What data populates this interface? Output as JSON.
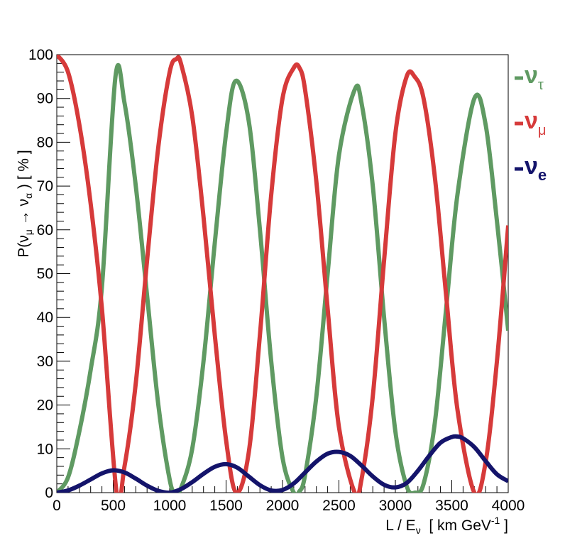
{
  "chart_data": {
    "type": "line",
    "xlabel": {
      "main": "L / E",
      "sub": "ν",
      "unit_pre": "  [ km GeV",
      "unit_sup": "-1",
      "unit_post": " ]"
    },
    "ylabel": {
      "pre": "P(",
      "nu1": "ν",
      "sub1": "μ",
      "arrow": " → ",
      "nu2": "ν",
      "sub2": "α",
      "post": " )  [ % ]"
    },
    "xlim": [
      0,
      4000
    ],
    "ylim": [
      0,
      100
    ],
    "x_ticks": [
      0,
      500,
      1000,
      1500,
      2000,
      2500,
      3000,
      3500,
      4000
    ],
    "y_ticks": [
      0,
      10,
      20,
      30,
      40,
      50,
      60,
      70,
      80,
      90,
      100
    ],
    "x_tick_labels": [
      "0",
      "500",
      "1000",
      "1500",
      "2000",
      "2500",
      "3000",
      "3500",
      "4000"
    ],
    "y_tick_labels": [
      "0",
      "10",
      "20",
      "30",
      "40",
      "50",
      "60",
      "70",
      "80",
      "90",
      "100"
    ],
    "grid": false,
    "legend_position": "right",
    "series": [
      {
        "name": "ν_τ",
        "symbol": "ν",
        "subscript": "τ",
        "color": "#5f9a62",
        "x": [
          0,
          100,
          200,
          300,
          400,
          520,
          600,
          700,
          800,
          900,
          1000,
          1050,
          1100,
          1200,
          1300,
          1400,
          1500,
          1585,
          1700,
          1800,
          1900,
          2000,
          2100,
          2150,
          2200,
          2300,
          2400,
          2500,
          2640,
          2700,
          2800,
          2900,
          3000,
          3100,
          3175,
          3250,
          3350,
          3450,
          3550,
          3700,
          3800,
          3900,
          4000
        ],
        "y": [
          0,
          3.5,
          14,
          28,
          47,
          95,
          89,
          70,
          45,
          20,
          3,
          0,
          1,
          10,
          30,
          57,
          82,
          94,
          85,
          60,
          30,
          8,
          0,
          0.3,
          4,
          22,
          50,
          77,
          92,
          89,
          70,
          40,
          14,
          1.5,
          0,
          2,
          16,
          42,
          68,
          90,
          84,
          62,
          37
        ]
      },
      {
        "name": "ν_μ",
        "symbol": "ν",
        "subscript": "μ",
        "color": "#d63a3a",
        "x": [
          0,
          100,
          200,
          300,
          400,
          530,
          600,
          700,
          800,
          900,
          1000,
          1060,
          1100,
          1200,
          1300,
          1400,
          1500,
          1590,
          1700,
          1800,
          1900,
          2000,
          2100,
          2150,
          2200,
          2300,
          2400,
          2500,
          2640,
          2700,
          2800,
          2900,
          3000,
          3100,
          3170,
          3250,
          3350,
          3450,
          3550,
          3700,
          3800,
          3900,
          4000
        ],
        "y": [
          100,
          96,
          84,
          66,
          42,
          0,
          6,
          25,
          53,
          79,
          96,
          99,
          98,
          86,
          63,
          36,
          12,
          0,
          9,
          36,
          68,
          90,
          97,
          97,
          92,
          71,
          42,
          15,
          0,
          3,
          22,
          53,
          82,
          95,
          95,
          90,
          72,
          45,
          19,
          0,
          7,
          30,
          61
        ]
      },
      {
        "name": "ν_e",
        "symbol": "ν",
        "subscript": "e",
        "color": "#14146b",
        "x": [
          0,
          100,
          200,
          300,
          400,
          500,
          600,
          700,
          800,
          900,
          1000,
          1100,
          1200,
          1300,
          1400,
          1500,
          1600,
          1700,
          1800,
          1900,
          2000,
          2100,
          2200,
          2300,
          2400,
          2500,
          2600,
          2700,
          2800,
          2900,
          3000,
          3100,
          3200,
          3300,
          3400,
          3500,
          3550,
          3600,
          3700,
          3800,
          3900,
          4000
        ],
        "y": [
          0,
          0.5,
          1.6,
          3.0,
          4.4,
          5.1,
          4.6,
          3.2,
          1.6,
          0.4,
          0,
          0.8,
          2.4,
          4.3,
          5.9,
          6.5,
          5.7,
          3.7,
          1.7,
          0.5,
          0.6,
          2.1,
          4.6,
          7.1,
          8.9,
          9.3,
          8.4,
          6.2,
          3.7,
          1.8,
          1.2,
          2.2,
          5.0,
          8.4,
          11.4,
          12.7,
          12.8,
          12.4,
          10.4,
          7.2,
          4.2,
          2.6
        ]
      }
    ]
  }
}
